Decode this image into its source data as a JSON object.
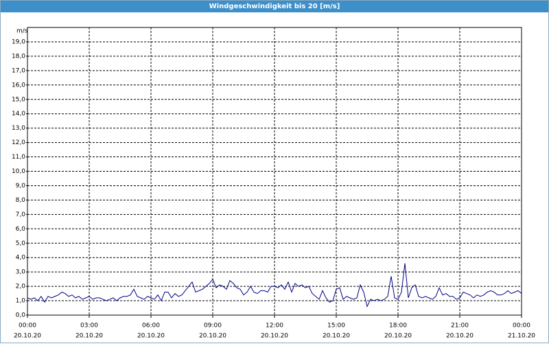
{
  "chart_data": {
    "type": "line",
    "title": "Windgeschwindigkeit bis 20 [m/s]",
    "y_unit": "m/s",
    "xlim": [
      0,
      1440
    ],
    "xticks": [
      {
        "value": 0,
        "label": "00:00",
        "date": "20.10.20"
      },
      {
        "value": 180,
        "label": "03:00",
        "date": "20.10.20"
      },
      {
        "value": 360,
        "label": "06:00",
        "date": "20.10.20"
      },
      {
        "value": 540,
        "label": "09:00",
        "date": "20.10.20"
      },
      {
        "value": 720,
        "label": "12:00",
        "date": "20.10.20"
      },
      {
        "value": 900,
        "label": "15:00",
        "date": "20.10.20"
      },
      {
        "value": 1080,
        "label": "18:00",
        "date": "20.10.20"
      },
      {
        "value": 1260,
        "label": "21:00",
        "date": "20.10.20"
      },
      {
        "value": 1440,
        "label": "00:00",
        "date": "21.10.20"
      }
    ],
    "ylim": [
      0,
      20
    ],
    "yticks": [
      {
        "value": 0,
        "label": "0,0"
      },
      {
        "value": 1,
        "label": "1,0"
      },
      {
        "value": 2,
        "label": "2,0"
      },
      {
        "value": 3,
        "label": "3,0"
      },
      {
        "value": 4,
        "label": "4,0"
      },
      {
        "value": 5,
        "label": "5,0"
      },
      {
        "value": 6,
        "label": "6,0"
      },
      {
        "value": 7,
        "label": "7,0"
      },
      {
        "value": 8,
        "label": "8,0"
      },
      {
        "value": 9,
        "label": "9,0"
      },
      {
        "value": 10,
        "label": "10,0"
      },
      {
        "value": 11,
        "label": "11,0"
      },
      {
        "value": 12,
        "label": "12,0"
      },
      {
        "value": 13,
        "label": "13,0"
      },
      {
        "value": 14,
        "label": "14,0"
      },
      {
        "value": 15,
        "label": "15,0"
      },
      {
        "value": 16,
        "label": "16,0"
      },
      {
        "value": 17,
        "label": "17,0"
      },
      {
        "value": 18,
        "label": "18,0"
      },
      {
        "value": 19,
        "label": "19,0"
      }
    ],
    "grid": true,
    "color": "#00008b",
    "x": [
      0,
      10,
      20,
      30,
      40,
      50,
      60,
      70,
      80,
      90,
      100,
      110,
      120,
      130,
      140,
      150,
      160,
      170,
      180,
      190,
      200,
      210,
      220,
      230,
      240,
      250,
      260,
      270,
      280,
      290,
      300,
      310,
      320,
      330,
      340,
      350,
      360,
      370,
      380,
      390,
      400,
      410,
      420,
      430,
      440,
      450,
      460,
      470,
      480,
      490,
      500,
      510,
      520,
      530,
      540,
      550,
      560,
      570,
      580,
      590,
      600,
      610,
      620,
      630,
      640,
      650,
      660,
      670,
      680,
      690,
      700,
      710,
      720,
      730,
      740,
      750,
      760,
      770,
      780,
      790,
      800,
      810,
      820,
      830,
      840,
      850,
      860,
      870,
      880,
      890,
      900,
      910,
      920,
      930,
      940,
      950,
      960,
      970,
      980,
      990,
      1000,
      1010,
      1020,
      1030,
      1040,
      1050,
      1060,
      1070,
      1080,
      1090,
      1100,
      1110,
      1120,
      1130,
      1140,
      1150,
      1160,
      1170,
      1180,
      1190,
      1200,
      1210,
      1220,
      1230,
      1240,
      1250,
      1260,
      1270,
      1280,
      1290,
      1300,
      1310,
      1320,
      1330,
      1340,
      1350,
      1360,
      1370,
      1380,
      1390,
      1400,
      1410,
      1420,
      1430,
      1440
    ],
    "values": [
      1.2,
      1.1,
      1.2,
      1.0,
      1.3,
      0.9,
      1.3,
      1.2,
      1.3,
      1.4,
      1.6,
      1.5,
      1.3,
      1.4,
      1.2,
      1.3,
      1.1,
      1.2,
      1.3,
      1.1,
      1.2,
      1.2,
      1.1,
      1.0,
      1.1,
      1.2,
      1.0,
      1.2,
      1.3,
      1.3,
      1.4,
      1.8,
      1.3,
      1.2,
      1.1,
      1.3,
      1.2,
      1.1,
      1.4,
      1.0,
      1.6,
      1.6,
      1.2,
      1.5,
      1.3,
      1.4,
      1.7,
      2.0,
      2.3,
      1.6,
      1.7,
      1.8,
      2.0,
      2.2,
      2.5,
      1.9,
      2.1,
      2.0,
      1.8,
      2.4,
      2.2,
      1.9,
      1.8,
      1.4,
      1.6,
      2.0,
      1.6,
      1.5,
      1.7,
      1.7,
      1.6,
      2.0,
      2.0,
      1.9,
      2.1,
      1.8,
      2.3,
      1.6,
      2.2,
      2.0,
      2.1,
      1.9,
      2.0,
      1.5,
      1.3,
      1.1,
      1.7,
      1.2,
      0.9,
      1.0,
      1.8,
      1.9,
      1.1,
      1.3,
      1.2,
      1.1,
      1.2,
      2.1,
      1.6,
      0.6,
      1.1,
      1.0,
      1.1,
      1.0,
      1.1,
      1.3,
      2.7,
      1.2,
      1.1,
      1.6,
      3.6,
      1.2,
      1.9,
      2.1,
      1.3,
      1.2,
      1.3,
      1.2,
      1.1,
      1.3,
      1.9,
      1.4,
      1.5,
      1.3,
      1.3,
      1.1,
      1.2,
      1.6,
      1.5,
      1.4,
      1.2,
      1.4,
      1.3,
      1.4,
      1.6,
      1.7,
      1.6,
      1.4,
      1.4,
      1.5,
      1.7,
      1.5,
      1.6,
      1.7,
      1.5
    ]
  }
}
